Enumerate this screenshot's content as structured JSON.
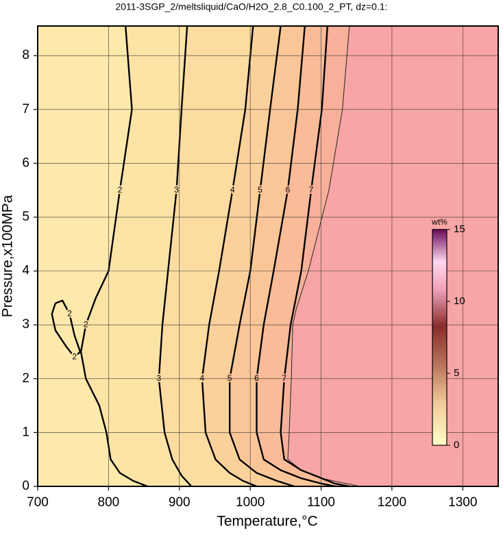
{
  "chart_data": {
    "type": "contour",
    "title": "2011-3SGP_2/meltsliquid/CaO/H2O_2.8_C0.100_2_PT, dz=0.1:",
    "x_label": "Temperature,°C",
    "y_label": "Pressure,x100MPa",
    "xlim": [
      700,
      1350
    ],
    "xticks": [
      700,
      800,
      900,
      1000,
      1100,
      1200,
      1300
    ],
    "ylim": [
      0,
      8.55
    ],
    "yticks": [
      0,
      1,
      2,
      3,
      4,
      5,
      6,
      7,
      8
    ],
    "grid": true,
    "background": "#fde9ac",
    "contours": [
      {
        "level": 2,
        "fill": "#fce4a6",
        "y": [
          8.55,
          7,
          5.5,
          4,
          3.5,
          3,
          2.5,
          2,
          1.5,
          1,
          0.5,
          0.25,
          0.1,
          0
        ],
        "x": [
          824,
          833,
          816,
          800,
          782,
          768,
          761,
          768,
          787,
          797,
          803,
          816,
          835,
          855
        ]
      },
      {
        "level": 2,
        "fill": null,
        "y": [
          3.4,
          3.45,
          3.2,
          2.8,
          2.5,
          2.4,
          2.6,
          2.9,
          3.2,
          3.4
        ],
        "x": [
          725,
          735,
          745,
          752,
          760,
          752,
          740,
          725,
          720,
          725
        ]
      },
      {
        "level": 3,
        "fill": "#fcdca0",
        "y": [
          8.55,
          7,
          5.5,
          4,
          3,
          2,
          1,
          0.5,
          0.2,
          0
        ],
        "x": [
          911,
          903,
          896,
          884,
          876,
          871,
          879,
          890,
          903,
          917
        ]
      },
      {
        "level": 4,
        "fill": "#fbd19b",
        "y": [
          8.55,
          7,
          5.5,
          4,
          3,
          2,
          1,
          0.5,
          0.25,
          0.1,
          0
        ],
        "x": [
          1004,
          993,
          975,
          956,
          942,
          932,
          937,
          951,
          971,
          990,
          1009
        ]
      },
      {
        "level": 5,
        "fill": "#fac698",
        "y": [
          8.55,
          7,
          5.5,
          4,
          3,
          2,
          1,
          0.5,
          0.25,
          0.1,
          0
        ],
        "x": [
          1043,
          1028,
          1014,
          1000,
          985,
          971,
          971,
          985,
          1009,
          1038,
          1062
        ]
      },
      {
        "level": 6,
        "fill": "#f9bb98",
        "y": [
          8.55,
          7,
          5.5,
          4,
          3,
          2,
          1,
          0.5,
          0.3,
          0.15,
          0.05,
          0
        ],
        "x": [
          1077,
          1067,
          1053,
          1033,
          1019,
          1009,
          1009,
          1019,
          1043,
          1072,
          1101,
          1120
        ]
      },
      {
        "level": 7,
        "fill": "#f8b09a",
        "y": [
          8.55,
          7,
          5.5,
          4,
          3,
          2,
          1,
          0.5,
          0.3,
          0.15,
          0.05,
          0
        ],
        "x": [
          1109,
          1101,
          1086,
          1072,
          1057,
          1048,
          1043,
          1048,
          1072,
          1101,
          1120,
          1140
        ]
      }
    ],
    "boundary": {
      "color": "#f8a5a5",
      "y": [
        8.55,
        7,
        5.5,
        4,
        3.3,
        3,
        2,
        1,
        0.5,
        0.3,
        0.15,
        0.08,
        0.03,
        0
      ],
      "x": [
        1140,
        1130,
        1111,
        1082,
        1065,
        1060,
        1058,
        1055,
        1053,
        1072,
        1101,
        1125,
        1144,
        1154
      ]
    },
    "colorbar": {
      "label": "wt%",
      "lim": [
        0,
        15
      ],
      "ticks": [
        0,
        5,
        10,
        15
      ]
    }
  }
}
